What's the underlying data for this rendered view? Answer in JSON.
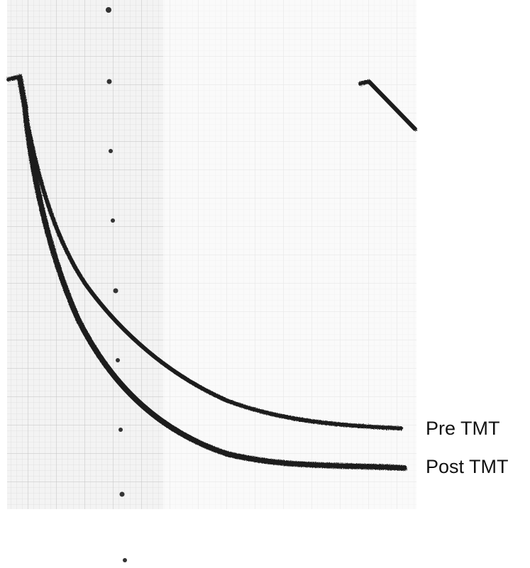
{
  "traces": [
    {
      "label": "Pre TMT"
    },
    {
      "label": "Post TMT"
    }
  ]
}
